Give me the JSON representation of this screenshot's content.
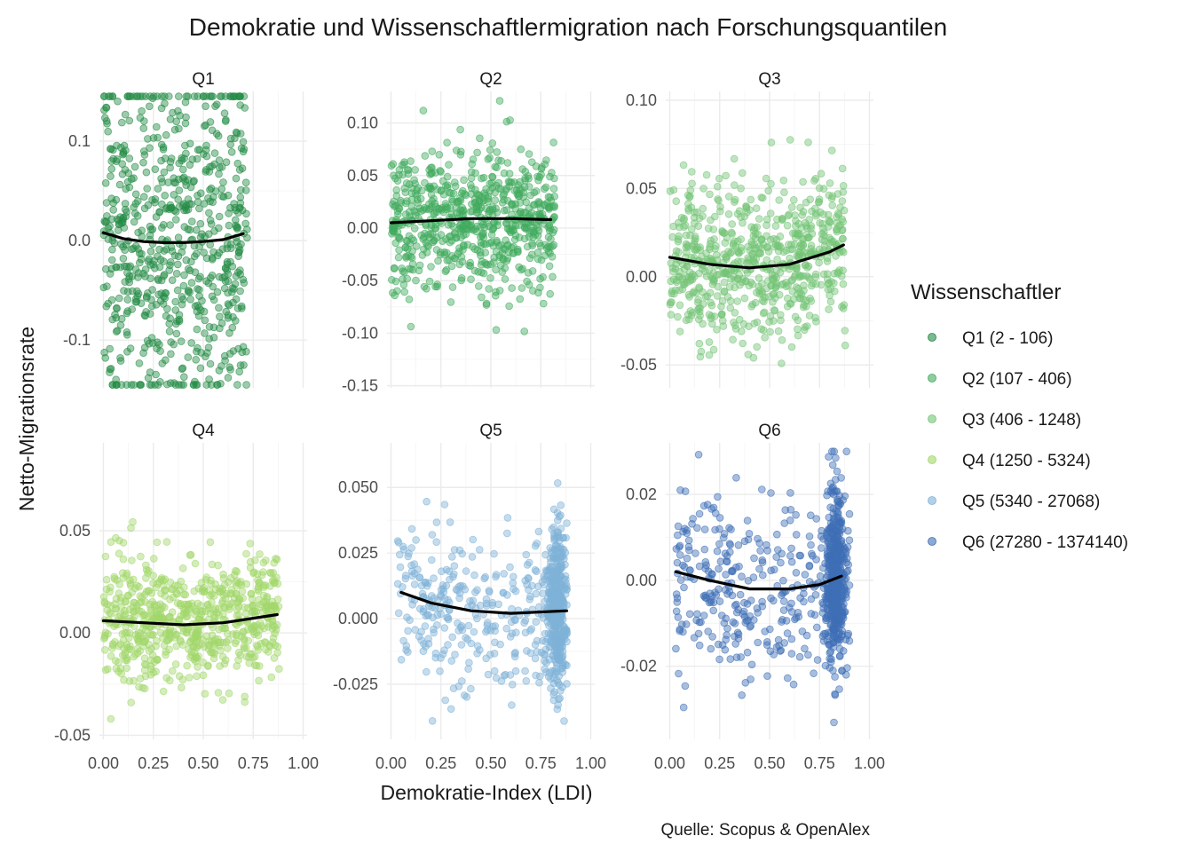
{
  "chart_data": {
    "type": "scatter",
    "title": "Demokratie und Wissenschaftlermigration nach Forschungsquantilen",
    "xlabel": "Demokratie-Index (LDI)",
    "ylabel": "Netto-Migrationsrate",
    "caption": "Quelle: Scopus & OpenAlex",
    "legend": {
      "title": "Wissenschaftler",
      "position": "right",
      "entries": [
        {
          "label": "Q1 (2 - 106)",
          "color": "#238b45"
        },
        {
          "label": "Q2 (107 - 406)",
          "color": "#41ab5d"
        },
        {
          "label": "Q3 (406 - 1248)",
          "color": "#74c476"
        },
        {
          "label": "Q4 (1250 - 5324)",
          "color": "#a1d76a"
        },
        {
          "label": "Q5 (5340 - 27068)",
          "color": "#7fb2d8"
        },
        {
          "label": "Q6 (27280 - 1374140)",
          "color": "#3f6fb5"
        }
      ]
    },
    "x_ticks": [
      "0.00",
      "0.25",
      "0.50",
      "0.75",
      "1.00"
    ],
    "xlim": [
      -0.02,
      1.02
    ],
    "panels": [
      {
        "name": "Q1",
        "color": "#238b45",
        "ylim": [
          -0.148,
          0.15
        ],
        "yticks": [
          -0.1,
          0.0,
          0.1
        ],
        "ytick_labels": [
          "-0.1",
          "0.0",
          "0.1"
        ],
        "trend": [
          [
            0.0,
            0.008
          ],
          [
            0.1,
            0.002
          ],
          [
            0.2,
            -0.001
          ],
          [
            0.3,
            -0.002
          ],
          [
            0.4,
            -0.002
          ],
          [
            0.5,
            -0.001
          ],
          [
            0.6,
            0.001
          ],
          [
            0.7,
            0.007
          ]
        ],
        "points_summary": {
          "count": 700,
          "x_range": [
            0.0,
            0.72
          ],
          "y_range": [
            -0.145,
            0.145
          ],
          "spread": 0.09,
          "dense_x": null,
          "seed": 11
        }
      },
      {
        "name": "Q2",
        "color": "#41ab5d",
        "ylim": [
          -0.152,
          0.13
        ],
        "yticks": [
          -0.15,
          -0.1,
          -0.05,
          0.0,
          0.05,
          0.1
        ],
        "ytick_labels": [
          "-0.15",
          "-0.10",
          "-0.05",
          "0.00",
          "0.05",
          "0.10"
        ],
        "trend": [
          [
            0.0,
            0.005
          ],
          [
            0.2,
            0.007
          ],
          [
            0.4,
            0.009
          ],
          [
            0.6,
            0.009
          ],
          [
            0.8,
            0.008
          ]
        ],
        "points_summary": {
          "count": 700,
          "x_range": [
            0.0,
            0.82
          ],
          "y_range": [
            -0.11,
            0.125
          ],
          "spread": 0.032,
          "dense_x": null,
          "seed": 22
        }
      },
      {
        "name": "Q3",
        "color": "#74c476",
        "ylim": [
          -0.063,
          0.105
        ],
        "yticks": [
          -0.05,
          0.0,
          0.05,
          0.1
        ],
        "ytick_labels": [
          "-0.05",
          "0.00",
          "0.05",
          "0.10"
        ],
        "trend": [
          [
            0.0,
            0.011
          ],
          [
            0.2,
            0.007
          ],
          [
            0.4,
            0.005
          ],
          [
            0.6,
            0.007
          ],
          [
            0.8,
            0.014
          ],
          [
            0.87,
            0.018
          ]
        ],
        "points_summary": {
          "count": 700,
          "x_range": [
            0.0,
            0.88
          ],
          "y_range": [
            -0.06,
            0.1
          ],
          "spread": 0.022,
          "dense_x": null,
          "seed": 33
        }
      },
      {
        "name": "Q4",
        "color": "#a1d76a",
        "ylim": [
          -0.052,
          0.093
        ],
        "yticks": [
          -0.05,
          0.0,
          0.05
        ],
        "ytick_labels": [
          "-0.05",
          "0.00",
          "0.05"
        ],
        "trend": [
          [
            0.0,
            0.006
          ],
          [
            0.2,
            0.005
          ],
          [
            0.4,
            0.004
          ],
          [
            0.6,
            0.005
          ],
          [
            0.87,
            0.009
          ]
        ],
        "points_summary": {
          "count": 700,
          "x_range": [
            0.0,
            0.88
          ],
          "y_range": [
            -0.048,
            0.09
          ],
          "spread": 0.015,
          "dense_x": null,
          "seed": 44
        }
      },
      {
        "name": "Q5",
        "color": "#7fb2d8",
        "ylim": [
          -0.046,
          0.067
        ],
        "yticks": [
          -0.025,
          0.0,
          0.025,
          0.05
        ],
        "ytick_labels": [
          "-0.025",
          "0.000",
          "0.025",
          "0.050"
        ],
        "trend": [
          [
            0.05,
            0.01
          ],
          [
            0.2,
            0.006
          ],
          [
            0.4,
            0.003
          ],
          [
            0.6,
            0.002
          ],
          [
            0.88,
            0.003
          ]
        ],
        "points_summary": {
          "count": 700,
          "x_range": [
            0.03,
            0.88
          ],
          "y_range": [
            -0.044,
            0.064
          ],
          "spread": 0.015,
          "dense_x": 0.83,
          "seed": 55
        }
      },
      {
        "name": "Q6",
        "color": "#3f6fb5",
        "ylim": [
          -0.037,
          0.032
        ],
        "yticks": [
          -0.02,
          0.0,
          0.02
        ],
        "ytick_labels": [
          "-0.02",
          "0.00",
          "0.02"
        ],
        "trend": [
          [
            0.03,
            0.002
          ],
          [
            0.2,
            0.0
          ],
          [
            0.4,
            -0.002
          ],
          [
            0.5,
            -0.002
          ],
          [
            0.6,
            -0.002
          ],
          [
            0.75,
            -0.001
          ],
          [
            0.86,
            0.001
          ]
        ],
        "points_summary": {
          "count": 800,
          "x_range": [
            0.03,
            0.9
          ],
          "y_range": [
            -0.036,
            0.03
          ],
          "spread": 0.01,
          "dense_x": 0.83,
          "seed": 66
        }
      }
    ]
  }
}
